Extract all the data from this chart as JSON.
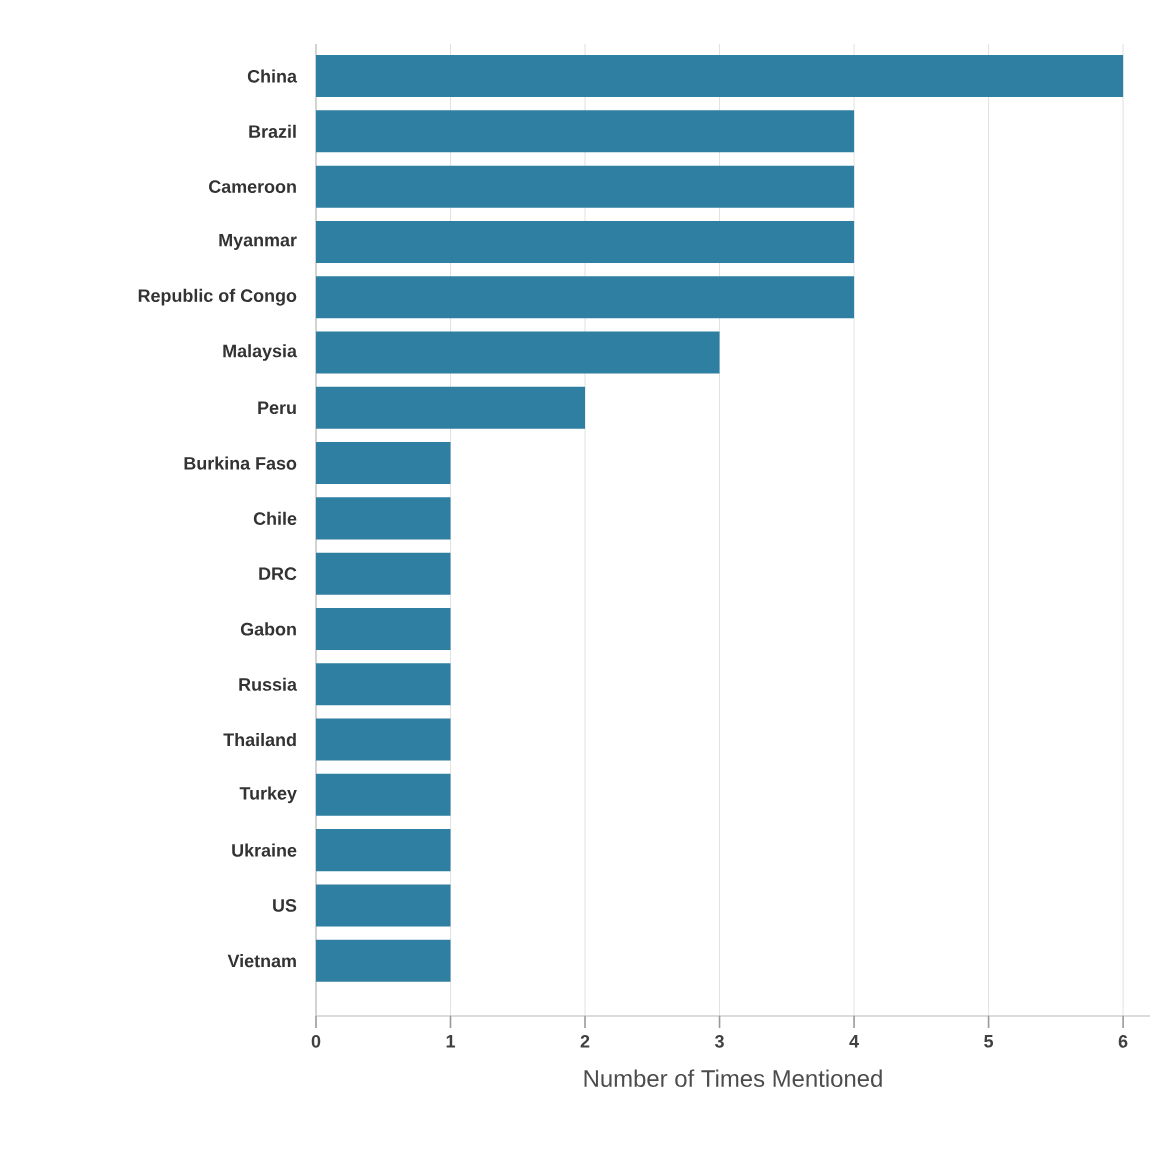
{
  "chart_data": {
    "type": "bar",
    "orientation": "horizontal",
    "xlabel": "Number of Times Mentioned",
    "categories": [
      "China",
      "Brazil",
      "Cameroon",
      "Myanmar",
      "Republic of Congo",
      "Malaysia",
      "Peru",
      "Burkina Faso",
      "Chile",
      "DRC",
      "Gabon",
      "Russia",
      "Thailand",
      "Turkey",
      "Ukraine",
      "US",
      "Vietnam"
    ],
    "values": [
      6,
      4,
      4,
      4,
      4,
      3,
      2,
      1,
      1,
      1,
      1,
      1,
      1,
      1,
      1,
      1,
      1
    ],
    "color": "#2e7fa1",
    "xlim": [
      0,
      6.2
    ],
    "xticks": [
      0,
      1,
      2,
      3,
      4,
      5,
      6
    ],
    "grid": "x"
  }
}
